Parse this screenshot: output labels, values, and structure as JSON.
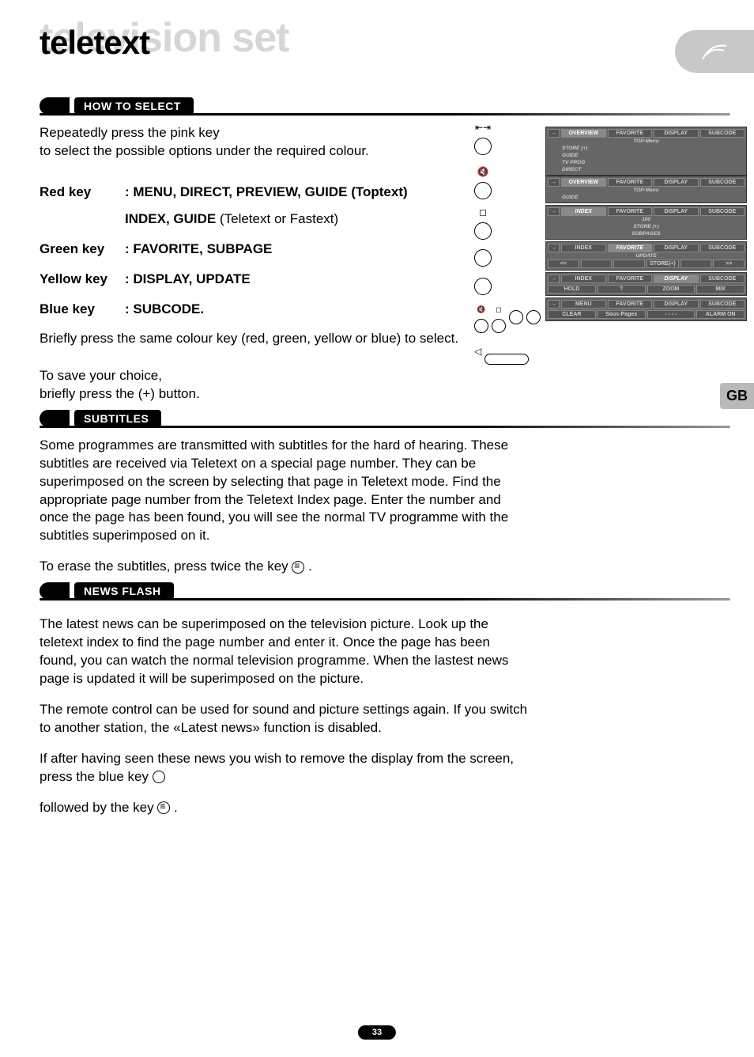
{
  "header": {
    "bg_text": "television set",
    "fg_text": "teletext"
  },
  "lang_tab": "GB",
  "page_number": "33",
  "sections": {
    "how_to_select": {
      "title": "HOW TO SELECT",
      "intro_l1": "Repeatedly press the pink key",
      "intro_l2": "to select the possible options under the required colour.",
      "keys": [
        {
          "label": "Red key",
          "desc_bold": ": MENU, DIRECT, PREVIEW, GUIDE (Toptext)",
          "sub_b": "INDEX, GUIDE",
          "sub_n": " (Teletext or Fastext)"
        },
        {
          "label": "Green key",
          "desc_bold": ": FAVORITE, SUBPAGE"
        },
        {
          "label": "Yellow key",
          "desc_bold": ": DISPLAY, UPDATE"
        },
        {
          "label": "Blue key",
          "desc_bold": ": SUBCODE."
        }
      ],
      "outro": "Briefly press the same colour key (red, green, yellow or blue) to select.",
      "save_l1": "To save your choice,",
      "save_l2": "briefly press the (+) button."
    },
    "subtitles": {
      "title": "SUBTITLES",
      "p1": "Some programmes are transmitted with subtitles for the hard of hearing. These subtitles are received via Teletext on a special page number. They can be superimposed on the screen by selecting that page in Teletext mode. Find the appropriate page number from the Teletext Index page. Enter the number and once the page has been found, you will see the normal TV programme with the subtitles superimposed on it.",
      "p2_a": "To erase the subtitles, press twice the key ",
      "p2_b": " ."
    },
    "newsflash": {
      "title": "NEWS FLASH",
      "p1": "The latest news can be superimposed on the television picture. Look up the teletext index to find the page number and enter it. Once the page has been found, you can watch the normal television programme. When the lastest news page is updated it will be superimposed on the picture.",
      "p2": "The remote control can be used for sound and picture settings again.  If you switch to another station, the «Latest news» function is disabled.",
      "p3_a": "If after having seen these news you wish to remove the display from the screen, press the blue key ",
      "p4_a": "followed by the key ",
      "p4_b": " ."
    }
  },
  "remote_glyphs": {
    "skip": "⇤⇥",
    "mute": "🔇",
    "stop": "◻",
    "tri": "◁"
  },
  "panels": [
    {
      "row1": [
        "→",
        "OVERVIEW",
        "FAVORITE",
        "DISPLAY",
        "SUBCODE"
      ],
      "active": 1,
      "subs": [
        {
          "t": "TOP-Menu",
          "c": true
        },
        {
          "t": "STORE (+)",
          "l": true
        },
        {
          "t": "GUIDE",
          "l": true
        },
        {
          "t": "TV PROG",
          "l": true
        },
        {
          "t": "DIRECT",
          "l": true
        }
      ]
    },
    {
      "row1": [
        "→",
        "OVERVIEW",
        "FAVORITE",
        "DISPLAY",
        "SUBCODE"
      ],
      "active": 1,
      "subs": [
        {
          "t": "TOP-Menu",
          "c": true
        },
        {
          "t": "GUIDE",
          "l": true
        }
      ]
    },
    {
      "row1": [
        "→",
        "INDEX",
        "FAVORITE",
        "DISPLAY",
        "SUBCODE"
      ],
      "activeItalic": 1,
      "subs": [
        {
          "t": "100",
          "c": true
        },
        {
          "t": "STORE (+)",
          "c": true
        },
        {
          "t": "SUBPAGES",
          "c": true
        }
      ]
    },
    {
      "row1": [
        "→",
        "INDEX",
        "FAVORITE",
        "DISPLAY",
        "SUBCODE"
      ],
      "activeItalic": 2,
      "row2": [
        "<<",
        "",
        "",
        "STORE(+)",
        "",
        ">>"
      ],
      "subs": [
        {
          "t": "UPDATE",
          "c": true
        }
      ]
    },
    {
      "row1": [
        "→",
        "INDEX",
        "FAVORITE",
        "DISPLAY",
        "SUBCODE"
      ],
      "activeItalic": 3,
      "row2": [
        "HOLD",
        "?",
        "ZOOM",
        "MIX"
      ]
    },
    {
      "row1": [
        "→",
        "MENU",
        "FAVORITE",
        "DISPLAY",
        "SUBCODE"
      ],
      "row2": [
        "CLEAR",
        "Sous-Pages",
        "- - - -",
        "ALARM ON"
      ]
    }
  ]
}
